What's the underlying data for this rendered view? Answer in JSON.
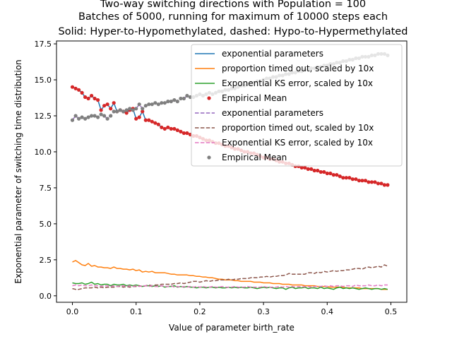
{
  "chart_data": {
    "type": "line",
    "title": [
      "Two-way switching directions with Population = 100",
      "Batches of 5000, running for maximum of 10000 steps each",
      "Solid: Hyper-to-Hypomethylated, dashed: Hypo-to-Hypermethylated"
    ],
    "xlabel": "Value of parameter birth_rate",
    "ylabel": "Exponential parameter of switching time distribution",
    "xlim": [
      -0.025,
      0.525
    ],
    "ylim": [
      -0.45,
      17.7
    ],
    "xticks": [
      0.0,
      0.1,
      0.2,
      0.3,
      0.4,
      0.5
    ],
    "xtick_labels": [
      "0.0",
      "0.1",
      "0.2",
      "0.3",
      "0.4",
      "0.5"
    ],
    "yticks": [
      0.0,
      2.5,
      5.0,
      7.5,
      10.0,
      12.5,
      15.0,
      17.5
    ],
    "ytick_labels": [
      "0.0",
      "2.5",
      "5.0",
      "7.5",
      "10.0",
      "12.5",
      "15.0",
      "17.5"
    ],
    "grid": false,
    "legend_placement": "top-right",
    "legend": [
      {
        "label": "exponential parameters",
        "color": "#1f77b4",
        "style": "solid"
      },
      {
        "label": "proportion timed out, scaled by 10x",
        "color": "#ff7f0e",
        "style": "solid"
      },
      {
        "label": "Exponential KS error, scaled by 10x",
        "color": "#2ca02c",
        "style": "solid"
      },
      {
        "label": "Empirical Mean",
        "color": "#d62728",
        "style": "marker"
      },
      {
        "label": "exponential parameters",
        "color": "#9467bd",
        "style": "dashed"
      },
      {
        "label": "proportion timed out, scaled by 10x",
        "color": "#8c564b",
        "style": "dashed"
      },
      {
        "label": "Exponential KS error, scaled by 10x",
        "color": "#e377c2",
        "style": "dashed"
      },
      {
        "label": "Empirical Mean",
        "color": "#7f7f7f",
        "style": "marker"
      }
    ],
    "x_start": 0.0,
    "x_step": 0.005,
    "series": [
      {
        "name": "exponential parameters",
        "color": "#1f77b4",
        "style": "solid",
        "values": [
          14.5,
          14.4,
          14.3,
          14.1,
          13.8,
          13.7,
          13.9,
          13.7,
          13.6,
          12.9,
          13.2,
          13.3,
          13.0,
          13.4,
          12.8,
          12.9,
          12.8,
          12.7,
          12.9,
          13.0,
          12.3,
          12.4,
          12.8,
          12.2,
          12.2,
          12.1,
          12.0,
          11.9,
          11.7,
          11.6,
          11.7,
          11.6,
          11.6,
          11.5,
          11.4,
          11.3,
          11.3,
          11.2,
          11.1,
          11.1,
          11.0,
          10.9,
          10.8,
          10.8,
          10.7,
          10.6,
          10.6,
          10.5,
          10.4,
          10.4,
          10.3,
          10.2,
          10.2,
          10.1,
          10.0,
          10.0,
          9.9,
          9.9,
          9.8,
          9.7,
          9.6,
          9.6,
          9.5,
          9.5,
          9.4,
          9.3,
          9.3,
          9.2,
          9.2,
          9.1,
          9.0,
          9.0,
          8.9,
          8.9,
          8.8,
          8.8,
          8.7,
          8.7,
          8.6,
          8.6,
          8.5,
          8.5,
          8.4,
          8.4,
          8.3,
          8.2,
          8.2,
          8.2,
          8.1,
          8.1,
          8.0,
          8.0,
          8.0,
          7.9,
          7.9,
          7.9,
          7.8,
          7.8,
          7.7,
          7.7
        ]
      },
      {
        "name": "proportion timed out, scaled by 10x",
        "color": "#ff7f0e",
        "style": "solid",
        "values": [
          2.35,
          2.45,
          2.3,
          2.15,
          2.1,
          2.25,
          2.05,
          2.1,
          2.0,
          2.0,
          1.95,
          1.95,
          1.9,
          2.0,
          1.9,
          1.9,
          1.85,
          1.85,
          1.8,
          1.85,
          1.75,
          1.8,
          1.65,
          1.7,
          1.65,
          1.7,
          1.6,
          1.6,
          1.6,
          1.6,
          1.55,
          1.5,
          1.5,
          1.45,
          1.45,
          1.45,
          1.45,
          1.4,
          1.4,
          1.35,
          1.35,
          1.3,
          1.3,
          1.25,
          1.25,
          1.2,
          1.15,
          1.15,
          1.1,
          1.1,
          1.1,
          1.05,
          1.05,
          1.0,
          1.0,
          1.0,
          1.0,
          0.95,
          0.95,
          0.95,
          0.9,
          0.9,
          0.9,
          0.85,
          0.85,
          0.85,
          0.8,
          0.8,
          0.8,
          0.75,
          0.75,
          0.75,
          0.75,
          0.7,
          0.7,
          0.7,
          0.7,
          0.65,
          0.65,
          0.65,
          0.65,
          0.6,
          0.6,
          0.6,
          0.6,
          0.6,
          0.55,
          0.55,
          0.55,
          0.55,
          0.55,
          0.5,
          0.5,
          0.5,
          0.5,
          0.5,
          0.5,
          0.45,
          0.45,
          0.45
        ]
      },
      {
        "name": "Exponential KS error, scaled by 10x",
        "color": "#2ca02c",
        "style": "solid",
        "values": [
          0.9,
          0.85,
          0.85,
          0.9,
          0.8,
          0.85,
          0.95,
          0.8,
          0.85,
          0.75,
          0.8,
          0.8,
          0.7,
          0.8,
          0.75,
          0.75,
          0.8,
          0.7,
          0.75,
          0.7,
          0.75,
          0.7,
          0.65,
          0.7,
          0.7,
          0.65,
          0.7,
          0.65,
          0.7,
          0.6,
          0.65,
          0.65,
          0.7,
          0.6,
          0.65,
          0.6,
          0.65,
          0.6,
          0.6,
          0.55,
          0.6,
          0.6,
          0.55,
          0.6,
          0.6,
          0.55,
          0.6,
          0.55,
          0.55,
          0.6,
          0.55,
          0.6,
          0.55,
          0.6,
          0.55,
          0.55,
          0.6,
          0.55,
          0.5,
          0.55,
          0.6,
          0.55,
          0.6,
          0.55,
          0.5,
          0.55,
          0.55,
          0.45,
          0.55,
          0.6,
          0.5,
          0.55,
          0.55,
          0.6,
          0.5,
          0.55,
          0.55,
          0.5,
          0.6,
          0.5,
          0.55,
          0.5,
          0.45,
          0.55,
          0.6,
          0.5,
          0.55,
          0.5,
          0.55,
          0.5,
          0.45,
          0.5,
          0.55,
          0.5,
          0.45,
          0.5,
          0.5,
          0.45,
          0.5,
          0.45
        ]
      },
      {
        "name": "Empirical Mean",
        "color": "#d62728",
        "style": "marker",
        "values": [
          14.5,
          14.4,
          14.3,
          14.1,
          13.8,
          13.7,
          13.9,
          13.7,
          13.6,
          12.9,
          13.2,
          13.3,
          13.0,
          13.4,
          12.8,
          12.9,
          12.8,
          12.7,
          12.9,
          13.0,
          12.3,
          12.4,
          12.8,
          12.2,
          12.2,
          12.1,
          12.0,
          11.9,
          11.7,
          11.6,
          11.7,
          11.6,
          11.6,
          11.5,
          11.4,
          11.3,
          11.3,
          11.2,
          11.1,
          11.1,
          11.0,
          10.9,
          10.8,
          10.8,
          10.7,
          10.6,
          10.6,
          10.5,
          10.4,
          10.4,
          10.3,
          10.2,
          10.2,
          10.1,
          10.0,
          10.0,
          9.9,
          9.9,
          9.8,
          9.7,
          9.6,
          9.6,
          9.5,
          9.5,
          9.4,
          9.3,
          9.3,
          9.2,
          9.2,
          9.1,
          9.0,
          9.0,
          8.9,
          8.9,
          8.8,
          8.8,
          8.7,
          8.7,
          8.6,
          8.6,
          8.5,
          8.5,
          8.4,
          8.4,
          8.3,
          8.2,
          8.2,
          8.2,
          8.1,
          8.1,
          8.0,
          8.0,
          8.0,
          7.9,
          7.9,
          7.9,
          7.8,
          7.8,
          7.7,
          7.7
        ]
      },
      {
        "name": "exponential parameters",
        "color": "#9467bd",
        "style": "dashed",
        "values": [
          12.2,
          12.5,
          12.3,
          12.4,
          12.3,
          12.4,
          12.5,
          12.5,
          12.4,
          12.6,
          12.5,
          12.3,
          12.5,
          12.8,
          12.8,
          12.9,
          12.8,
          12.9,
          13.0,
          12.9,
          13.0,
          13.3,
          13.0,
          13.2,
          13.3,
          13.3,
          13.4,
          13.3,
          13.4,
          13.4,
          13.5,
          13.5,
          13.6,
          13.5,
          13.7,
          13.7,
          13.9,
          13.8,
          13.8,
          13.9,
          14.0,
          13.9,
          14.0,
          14.1,
          14.0,
          14.1,
          14.2,
          14.2,
          14.3,
          14.3,
          14.4,
          14.4,
          14.5,
          14.6,
          14.6,
          14.7,
          14.8,
          14.8,
          14.9,
          14.9,
          15.0,
          15.1,
          15.1,
          15.2,
          15.2,
          15.3,
          15.3,
          15.4,
          15.4,
          15.5,
          15.5,
          15.6,
          15.6,
          15.7,
          15.7,
          15.8,
          15.8,
          15.9,
          15.9,
          16.0,
          16.0,
          16.1,
          16.1,
          16.2,
          16.2,
          16.3,
          16.3,
          16.4,
          16.4,
          16.5,
          16.5,
          16.6,
          16.6,
          16.6,
          16.7,
          16.7,
          16.8,
          16.8,
          16.8,
          16.7
        ]
      },
      {
        "name": "proportion timed out, scaled by 10x",
        "color": "#8c564b",
        "style": "dashed",
        "values": [
          0.5,
          0.45,
          0.45,
          0.5,
          0.55,
          0.55,
          0.55,
          0.6,
          0.55,
          0.6,
          0.55,
          0.6,
          0.6,
          0.6,
          0.65,
          0.65,
          0.6,
          0.65,
          0.6,
          0.65,
          0.65,
          0.7,
          0.65,
          0.7,
          0.75,
          0.7,
          0.75,
          0.75,
          0.8,
          0.8,
          0.8,
          0.8,
          0.85,
          0.85,
          0.9,
          0.85,
          0.9,
          0.95,
          1.0,
          1.0,
          0.95,
          1.0,
          1.05,
          1.0,
          1.05,
          1.05,
          1.1,
          1.1,
          1.1,
          1.15,
          1.1,
          1.15,
          1.15,
          1.2,
          1.2,
          1.2,
          1.25,
          1.25,
          1.25,
          1.3,
          1.3,
          1.35,
          1.3,
          1.35,
          1.35,
          1.4,
          1.4,
          1.45,
          1.55,
          1.5,
          1.5,
          1.5,
          1.5,
          1.5,
          1.6,
          1.6,
          1.55,
          1.65,
          1.6,
          1.7,
          1.65,
          1.7,
          1.75,
          1.7,
          1.75,
          1.75,
          1.8,
          1.8,
          1.85,
          1.9,
          1.9,
          1.85,
          1.95,
          2.0,
          1.95,
          2.0,
          2.05,
          2.0,
          2.15,
          2.05
        ]
      },
      {
        "name": "Exponential KS error, scaled by 10x",
        "color": "#e377c2",
        "style": "dashed",
        "values": [
          0.7,
          0.75,
          0.7,
          0.75,
          0.7,
          0.7,
          0.75,
          0.7,
          0.7,
          0.65,
          0.7,
          0.7,
          0.65,
          0.7,
          0.65,
          0.7,
          0.7,
          0.65,
          0.7,
          0.65,
          0.7,
          0.65,
          0.7,
          0.7,
          0.65,
          0.7,
          0.65,
          0.65,
          0.7,
          0.65,
          0.65,
          0.7,
          0.6,
          0.65,
          0.6,
          0.65,
          0.6,
          0.65,
          0.6,
          0.65,
          0.6,
          0.65,
          0.6,
          0.6,
          0.65,
          0.6,
          0.6,
          0.65,
          0.6,
          0.6,
          0.6,
          0.65,
          0.6,
          0.6,
          0.6,
          0.65,
          0.6,
          0.6,
          0.6,
          0.6,
          0.65,
          0.6,
          0.6,
          0.6,
          0.6,
          0.65,
          0.6,
          0.65,
          0.6,
          0.65,
          0.6,
          0.65,
          0.6,
          0.65,
          0.65,
          0.6,
          0.65,
          0.65,
          0.65,
          0.7,
          0.65,
          0.7,
          0.65,
          0.7,
          0.7,
          0.65,
          0.7,
          0.7,
          0.65,
          0.75,
          0.7,
          0.7,
          0.7,
          0.75,
          0.7,
          0.7,
          0.75,
          0.7,
          0.75,
          0.75
        ]
      },
      {
        "name": "Empirical Mean",
        "color": "#7f7f7f",
        "style": "marker",
        "values": [
          12.2,
          12.5,
          12.3,
          12.4,
          12.3,
          12.4,
          12.5,
          12.5,
          12.4,
          12.6,
          12.5,
          12.3,
          12.5,
          12.8,
          12.8,
          12.9,
          12.8,
          12.9,
          13.0,
          12.9,
          13.0,
          13.3,
          13.0,
          13.2,
          13.3,
          13.3,
          13.4,
          13.3,
          13.4,
          13.4,
          13.5,
          13.5,
          13.6,
          13.5,
          13.7,
          13.7,
          13.9,
          13.8,
          13.8,
          13.9,
          14.0,
          13.9,
          14.0,
          14.1,
          14.0,
          14.1,
          14.2,
          14.2,
          14.3,
          14.3,
          14.4,
          14.4,
          14.5,
          14.6,
          14.6,
          14.7,
          14.8,
          14.8,
          14.9,
          14.9,
          15.0,
          15.1,
          15.1,
          15.2,
          15.2,
          15.3,
          15.3,
          15.4,
          15.4,
          15.5,
          15.5,
          15.6,
          15.6,
          15.7,
          15.7,
          15.8,
          15.8,
          15.9,
          15.9,
          16.0,
          16.0,
          16.1,
          16.1,
          16.2,
          16.2,
          16.3,
          16.3,
          16.4,
          16.4,
          16.5,
          16.5,
          16.6,
          16.6,
          16.6,
          16.7,
          16.7,
          16.8,
          16.8,
          16.8,
          16.7
        ]
      }
    ]
  }
}
